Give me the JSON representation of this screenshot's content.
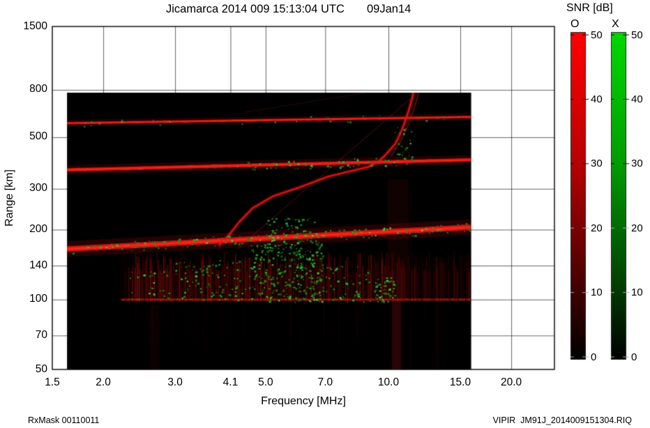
{
  "title": "Jicamarca 2014 009 15:13:04 UTC       09Jan14",
  "axes": {
    "xlabel": "Frequency [MHz]",
    "ylabel": "Range [km]"
  },
  "footer": {
    "left": "RxMask 00110011",
    "right": "VIPIR  JM91J_2014009151304.RIQ"
  },
  "colors": {
    "background": "#000000",
    "o_mode": "#ff0000",
    "x_mode": "#00cc00",
    "grid": "#000000"
  },
  "chart_data": {
    "type": "heatmap",
    "title": "Jicamarca 2014 009 15:13:04 UTC 09Jan14",
    "xlabel": "Frequency [MHz]",
    "ylabel": "Range [km]",
    "x_scale": "log",
    "y_scale": "log",
    "xlim": [
      1.5,
      25
    ],
    "ylim": [
      50,
      1500
    ],
    "grid": true,
    "x_ticks": [
      1.5,
      2.0,
      3.0,
      4.1,
      5.0,
      7.0,
      10.0,
      15.0,
      20.0
    ],
    "x_tick_labels": [
      "1.5",
      "2.0",
      "3.0",
      "4.1",
      "5.0",
      "7.0",
      "10.0",
      "15.0",
      "20.0"
    ],
    "y_ticks": [
      1500,
      800,
      500,
      300,
      200,
      140,
      100,
      70,
      50
    ],
    "y_tick_labels": [
      "1500",
      "800",
      "500",
      "300",
      "200",
      "140",
      "100",
      "70",
      "50"
    ],
    "data_extent": {
      "f": [
        1.63,
        15.95
      ],
      "r": [
        50,
        778
      ]
    },
    "colorbar": {
      "title": "SNR [dB]",
      "range": [
        0,
        50
      ],
      "ticks": [
        0,
        10,
        20,
        30,
        40,
        50
      ],
      "legend_position": "right",
      "bars": [
        {
          "label": "O",
          "color": "#ff0000",
          "stops": [
            [
              0,
              "#ff0000"
            ],
            [
              0.4,
              "#b80000"
            ],
            [
              0.7,
              "#5c0000"
            ],
            [
              1,
              "#000000"
            ]
          ]
        },
        {
          "label": "X",
          "color": "#00cc00",
          "stops": [
            [
              0,
              "#00d800"
            ],
            [
              0.4,
              "#009d00"
            ],
            [
              0.7,
              "#005200"
            ],
            [
              1,
              "#000000"
            ]
          ]
        }
      ]
    },
    "features": {
      "bands": [
        {
          "f0": 1.63,
          "f1": 15.9,
          "r0": 575,
          "r1": 612,
          "w": 3.5,
          "color": "#c61111"
        },
        {
          "f0": 1.63,
          "f1": 15.9,
          "r0": 362,
          "r1": 400,
          "w": 5,
          "color": "#cf1313"
        },
        {
          "f0": 1.63,
          "f1": 15.9,
          "r0": 165,
          "r1": 205,
          "w": 8,
          "color": "#d81414"
        }
      ],
      "e_region": {
        "f": [
          2.15,
          15.9
        ],
        "r_top": 150,
        "r_bot": 95,
        "bright_line_r": 100,
        "bright_f": [
          2.2,
          15.9
        ]
      },
      "streaks": [
        {
          "f": [
            10.2,
            10.75
          ],
          "r": [
            50,
            100
          ],
          "a": 0.2
        },
        {
          "f": [
            9.95,
            11.2
          ],
          "r": [
            100,
            330
          ],
          "a": 0.08
        },
        {
          "f": [
            2.6,
            2.75
          ],
          "r": [
            50,
            95
          ],
          "a": 0.06
        },
        {
          "f": [
            13.0,
            13.3
          ],
          "r": [
            50,
            95
          ],
          "a": 0.05
        }
      ],
      "traces": [
        {
          "pts": [
            [
              3.85,
              172
            ],
            [
              4.05,
              188
            ],
            [
              4.3,
              215
            ],
            [
              4.65,
              248
            ],
            [
              5.2,
              278
            ],
            [
              6.1,
              306
            ],
            [
              7.1,
              338
            ],
            [
              8.0,
              356
            ],
            [
              8.9,
              372
            ],
            [
              9.5,
              395
            ],
            [
              9.9,
              425
            ],
            [
              10.4,
              470
            ],
            [
              10.75,
              530
            ],
            [
              11.0,
              590
            ],
            [
              11.25,
              665
            ],
            [
              11.45,
              745
            ],
            [
              11.5,
              778
            ]
          ],
          "w": 2.6,
          "a": 0.95,
          "color": "#e41312",
          "glow": true
        },
        {
          "pts": [
            [
              10.15,
              415
            ],
            [
              10.7,
              478
            ],
            [
              11.15,
              560
            ],
            [
              11.5,
              650
            ],
            [
              11.78,
              745
            ],
            [
              11.85,
              778
            ]
          ],
          "w": 1.8,
          "a": 0.5,
          "color": "#d01212",
          "glow": false
        },
        {
          "pts": [
            [
              4.25,
              165
            ],
            [
              11.9,
              790
            ]
          ],
          "w": 1.3,
          "a": 0.3,
          "color": "#b52020",
          "glow": false
        },
        {
          "pts": [
            [
              4.45,
              640
            ],
            [
              8.8,
              778
            ]
          ],
          "w": 1.2,
          "a": 0.22,
          "color": "#b52020",
          "glow": false
        }
      ],
      "speckles": [
        {
          "band": 2,
          "f": [
            1.65,
            15.8
          ],
          "n": 160,
          "spread": 7
        },
        {
          "band": 1,
          "f": [
            4.2,
            11.6
          ],
          "n": 60,
          "spread": 6
        },
        {
          "band": 0,
          "f": [
            1.65,
            15.5
          ],
          "n": 30,
          "spread": 5
        },
        {
          "f": [
            4.6,
            6.9
          ],
          "r": [
            98,
            178
          ],
          "n": 300
        },
        {
          "f": [
            3.0,
            4.6
          ],
          "r": [
            100,
            148
          ],
          "n": 90
        },
        {
          "f": [
            2.3,
            3.0
          ],
          "r": [
            100,
            135
          ],
          "n": 25
        },
        {
          "f": [
            7.0,
            9.0
          ],
          "r": [
            98,
            142
          ],
          "n": 50
        },
        {
          "f": [
            9.2,
            10.4
          ],
          "r": [
            98,
            125
          ],
          "n": 55
        },
        {
          "f": [
            10.3,
            11.4
          ],
          "r": [
            410,
            560
          ],
          "n": 22
        },
        {
          "f": [
            5.0,
            6.6
          ],
          "r": [
            178,
            225
          ],
          "n": 70
        },
        {
          "f": [
            1.63,
            15.9
          ],
          "r": [
            51,
            772
          ],
          "n": 1500,
          "color": "#a60e0e",
          "alpha": 0.13,
          "size": 1.4
        }
      ]
    }
  }
}
